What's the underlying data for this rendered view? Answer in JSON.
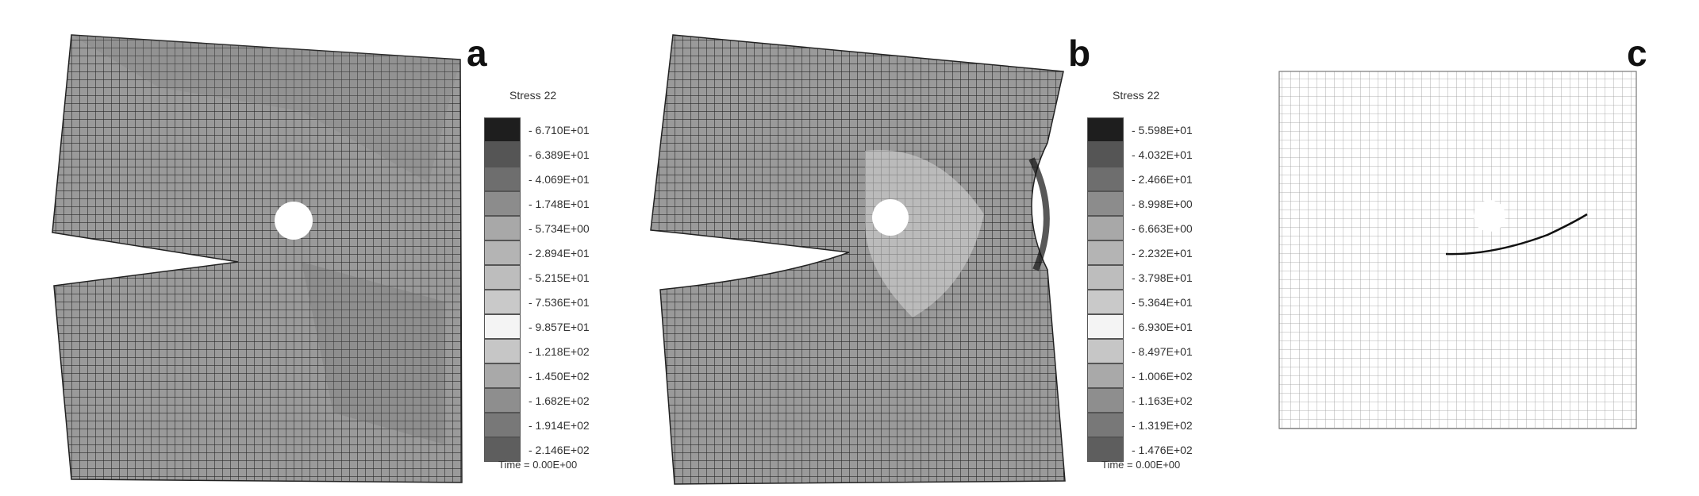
{
  "panels": [
    {
      "letter": "a",
      "legend_title": "Stress 22",
      "levels": [
        "6.710E+01",
        "6.389E+01",
        "4.069E+01",
        "1.748E+01",
        "5.734E+00",
        "2.894E+01",
        "5.215E+01",
        "7.536E+01",
        "9.857E+01",
        "1.218E+02",
        "1.450E+02",
        "1.682E+02",
        "1.914E+02",
        "2.146E+02"
      ],
      "colors": [
        "#1e1e1e",
        "#555555",
        "#6e6e6e",
        "#8c8c8c",
        "#a8a8a8",
        "#b4b4b4",
        "#bdbdbd",
        "#c9c9c9",
        "#f4f4f4",
        "#c6c6c6",
        "#a9a9a9",
        "#8e8e8e",
        "#787878",
        "#5e5e5e"
      ],
      "time": "Time = 0.00E+00"
    },
    {
      "letter": "b",
      "legend_title": "Stress 22",
      "levels": [
        "5.598E+01",
        "4.032E+01",
        "2.466E+01",
        "8.998E+00",
        "6.663E+00",
        "2.232E+01",
        "3.798E+01",
        "5.364E+01",
        "6.930E+01",
        "8.497E+01",
        "1.006E+02",
        "1.163E+02",
        "1.319E+02",
        "1.476E+02"
      ],
      "colors": [
        "#1e1e1e",
        "#555555",
        "#6e6e6e",
        "#8c8c8c",
        "#a8a8a8",
        "#b4b4b4",
        "#bdbdbd",
        "#c9c9c9",
        "#f4f4f4",
        "#c6c6c6",
        "#a9a9a9",
        "#8e8e8e",
        "#787878",
        "#5e5e5e"
      ],
      "time": "Time = 0.00E+00"
    },
    {
      "letter": "c"
    }
  ]
}
